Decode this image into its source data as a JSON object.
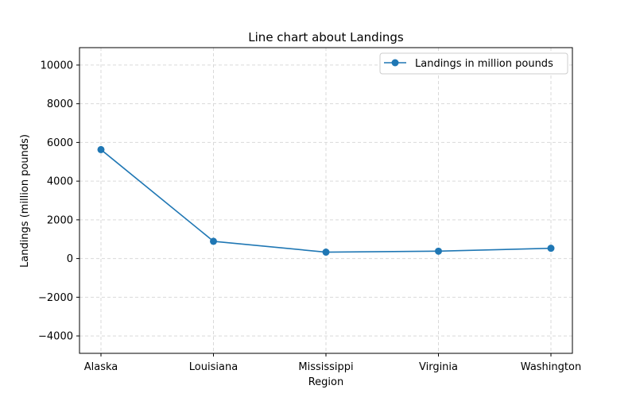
{
  "chart_data": {
    "type": "line",
    "title": "Line chart about Landings",
    "xlabel": "Region",
    "ylabel": "Landings (million pounds)",
    "categories": [
      "Alaska",
      "Louisiana",
      "Mississippi",
      "Virginia",
      "Washington"
    ],
    "series": [
      {
        "name": "Landings in million pounds",
        "values": [
          5630,
          890,
          330,
          380,
          530
        ],
        "color": "#1f77b4",
        "marker": "circle"
      }
    ],
    "ylim": [
      -4900,
      10900
    ],
    "yticks": [
      -4000,
      -2000,
      0,
      2000,
      4000,
      6000,
      8000,
      10000
    ],
    "grid": true,
    "legend_position": "top-right"
  }
}
